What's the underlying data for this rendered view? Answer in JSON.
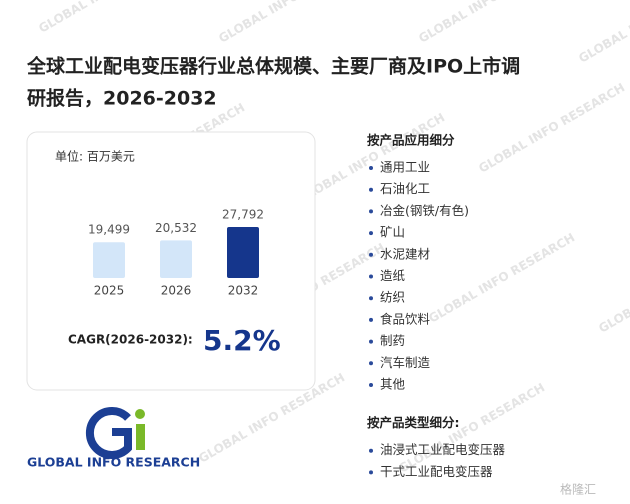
{
  "header": {
    "title_line1": "全球工业配电变压器行业总体规模、主要厂商及IPO上市调",
    "title_line2": "研报告，2026-2032"
  },
  "chart_data": {
    "type": "bar",
    "unit": "单位: 百万美元",
    "categories": [
      "2025",
      "2026",
      "2032"
    ],
    "values": [
      19499,
      20532,
      27792
    ],
    "value_labels": [
      "19,499",
      "20,532",
      "27,792"
    ],
    "colors": [
      "#d3e6f9",
      "#d3e6f9",
      "#15368c"
    ]
  },
  "cagr": {
    "label": "CAGR(2026-2032):",
    "value": "5.2%"
  },
  "segments": [
    {
      "heading": "按产品应用细分",
      "items": [
        "通用工业",
        "石油化工",
        "冶金(钢铁/有色)",
        "矿山",
        "水泥建材",
        "造纸",
        "纺织",
        "食品饮料",
        "制药",
        "汽车制造",
        "其他"
      ]
    },
    {
      "heading": "按产品类型细分:",
      "items": [
        "油浸式工业配电变压器",
        "干式工业配电变压器"
      ]
    }
  ],
  "logo": {
    "text": "GLOBAL INFO RESEARCH"
  },
  "watermark": {
    "text": "GLOBAL INFO RESEARCH",
    "corner": "格隆汇"
  }
}
